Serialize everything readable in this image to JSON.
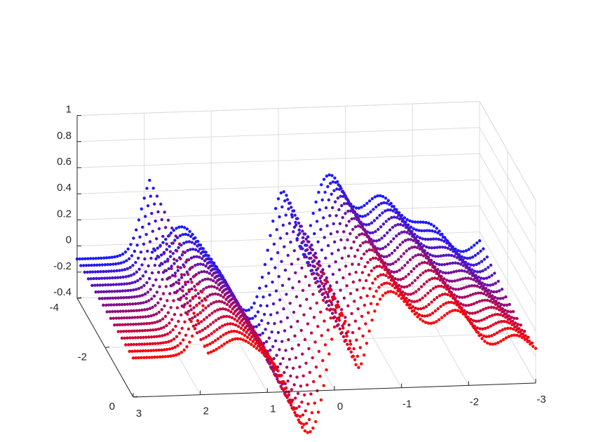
{
  "chart_data": {
    "type": "scatter",
    "view": "3d",
    "title": "",
    "xlabel": "",
    "ylabel": "",
    "zlabel": "",
    "grid": true,
    "x_ticks": [
      "3",
      "2",
      "1",
      "0",
      "-1",
      "-2",
      "-3"
    ],
    "y_ticks": [
      "-4",
      "-2",
      "0"
    ],
    "z_ticks": [
      "1",
      "0.8",
      "0.6",
      "0.4",
      "0.2",
      "0",
      "-0.2",
      "-0.4"
    ],
    "xlim": [
      -3,
      3
    ],
    "ylim": [
      -4,
      0
    ],
    "zlim": [
      -0.4,
      1
    ],
    "color_start": "#1a1aff",
    "color_end": "#ff0000",
    "series_count": 16,
    "series_profile": "oscillating curves along x that shift and amplify with y: flat near -0.1 at x=3, plateau up to ~0.6 near x=2.6, bump near x=1.4, deep minimum near x=0.5 (down to ~-0.35), peaks near x=-0.1 and x=-0.7, decaying oscillation toward x=-3"
  }
}
